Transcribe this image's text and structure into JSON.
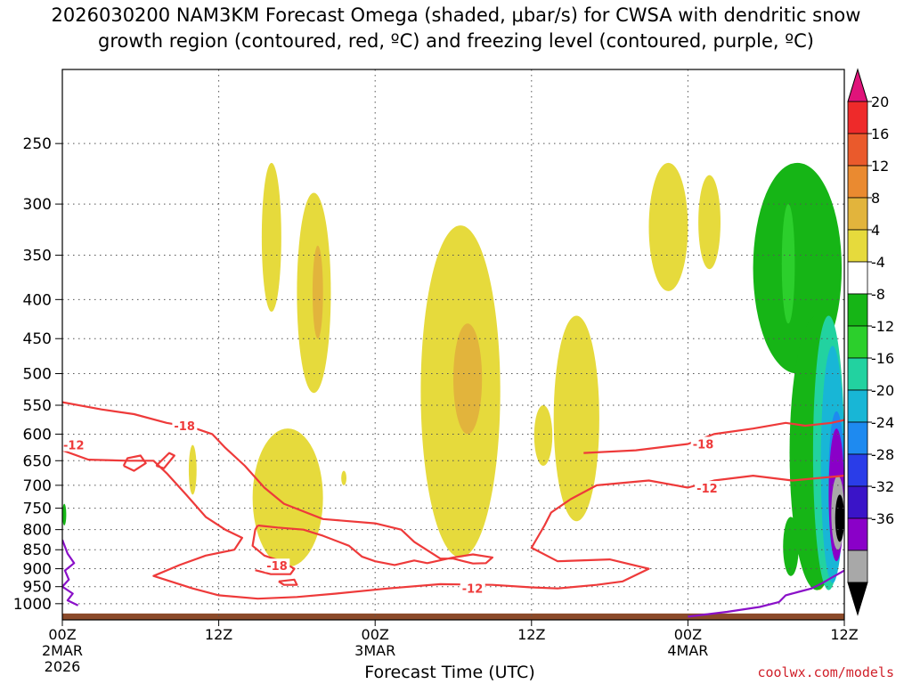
{
  "title_line1": "2026030200 NAM3KM Forecast Omega (shaded, μbar/s) for CWSA with dendritic snow",
  "title_line2": "growth region (contoured, red, ºC) and freezing level (contoured, purple, ºC)",
  "credit": "coolwx.com/models",
  "chart_data": {
    "type": "time-height cross section (filled contours + line contours)",
    "title": "2026030200 NAM3KM Forecast Omega (shaded, μbar/s) for CWSA with dendritic snow growth region (contoured, red, ºC) and freezing level (contoured, purple, ºC)",
    "xlabel": "Forecast Time (UTC)",
    "ylabel": "",
    "x_range_hours": [
      0,
      60
    ],
    "y_scale": "log (pressure)",
    "ylim_hPa": [
      1050,
      200
    ],
    "grid": true,
    "y_ticks": [
      250,
      300,
      350,
      400,
      450,
      500,
      550,
      600,
      650,
      700,
      750,
      800,
      850,
      900,
      950,
      1000
    ],
    "x_ticks": [
      {
        "hour": 0,
        "lines": [
          "00Z",
          "2MAR",
          "2026"
        ]
      },
      {
        "hour": 12,
        "lines": [
          "12Z"
        ]
      },
      {
        "hour": 24,
        "lines": [
          "00Z",
          "3MAR"
        ]
      },
      {
        "hour": 36,
        "lines": [
          "12Z"
        ]
      },
      {
        "hour": 48,
        "lines": [
          "00Z",
          "4MAR"
        ]
      },
      {
        "hour": 60,
        "lines": [
          "12Z"
        ]
      }
    ],
    "colorbar": {
      "labels": [
        "20",
        "16",
        "12",
        "8",
        "4",
        "-4",
        "-8",
        "-12",
        "-16",
        "-20",
        "-24",
        "-28",
        "-32",
        "-36"
      ],
      "colors": [
        "#e0137a",
        "#ee2a2a",
        "#ea5a2c",
        "#ea8a30",
        "#e2b43c",
        "#e6da3c",
        "#ffffff",
        "#16b516",
        "#2ccf2c",
        "#22d2a0",
        "#18b6d6",
        "#1e8af0",
        "#2a3de8",
        "#3a14c8",
        "#8a00c8",
        "#a8a8a8",
        "#000000"
      ]
    },
    "omega_regions": [
      {
        "level": "4",
        "hours": [
          15.3,
          16.8
        ],
        "p_hPa": [
          265,
          415
        ]
      },
      {
        "level": "4",
        "hours": [
          18.0,
          20.6
        ],
        "p_hPa": [
          290,
          530
        ]
      },
      {
        "level": "8",
        "hours": [
          19.2,
          20.0
        ],
        "p_hPa": [
          340,
          450
        ]
      },
      {
        "level": "4",
        "hours": [
          14.6,
          20.0
        ],
        "p_hPa": [
          590,
          895
        ]
      },
      {
        "level": "4",
        "hours": [
          9.7,
          10.3
        ],
        "p_hPa": [
          620,
          720
        ]
      },
      {
        "level": "4",
        "hours": [
          21.4,
          21.8
        ],
        "p_hPa": [
          670,
          700
        ]
      },
      {
        "level": "4",
        "hours": [
          27.5,
          33.6
        ],
        "p_hPa": [
          320,
          870
        ]
      },
      {
        "level": "8",
        "hours": [
          30.0,
          32.2
        ],
        "p_hPa": [
          430,
          600
        ]
      },
      {
        "level": "4",
        "hours": [
          36.2,
          37.6
        ],
        "p_hPa": [
          550,
          660
        ]
      },
      {
        "level": "4",
        "hours": [
          37.7,
          41.2
        ],
        "p_hPa": [
          420,
          780
        ]
      },
      {
        "level": "4",
        "hours": [
          45.0,
          48.0
        ],
        "p_hPa": [
          265,
          390
        ]
      },
      {
        "level": "4",
        "hours": [
          48.8,
          50.5
        ],
        "p_hPa": [
          275,
          365
        ]
      },
      {
        "level": "4",
        "hours": [
          57.6,
          58.6
        ],
        "p_hPa": [
          850,
          960
        ]
      },
      {
        "level": "-4",
        "hours": [
          53.0,
          59.8
        ],
        "p_hPa": [
          265,
          500
        ]
      },
      {
        "level": "-4",
        "hours": [
          55.8,
          60.0
        ],
        "p_hPa": [
          420,
          960
        ]
      },
      {
        "level": "-4",
        "hours": [
          55.3,
          56.5
        ],
        "p_hPa": [
          770,
          920
        ]
      },
      {
        "level": "-8",
        "hours": [
          55.2,
          56.2
        ],
        "p_hPa": [
          300,
          430
        ]
      },
      {
        "level": "-12",
        "hours": [
          57.6,
          60.0
        ],
        "p_hPa": [
          420,
          960
        ]
      },
      {
        "level": "-16",
        "hours": [
          58.2,
          60.0
        ],
        "p_hPa": [
          460,
          940
        ]
      },
      {
        "level": "-20",
        "hours": [
          58.8,
          60.0
        ],
        "p_hPa": [
          560,
          820
        ]
      },
      {
        "level": "-28",
        "hours": [
          58.8,
          60.0
        ],
        "p_hPa": [
          590,
          880
        ]
      },
      {
        "level": "-32",
        "hours": [
          59.0,
          60.0
        ],
        "p_hPa": [
          680,
          850
        ]
      },
      {
        "level": "-36",
        "hours": [
          59.3,
          60.0
        ],
        "p_hPa": [
          720,
          830
        ]
      },
      {
        "level": "-4",
        "hours": [
          0.0,
          0.3
        ],
        "p_hPa": [
          740,
          790
        ]
      }
    ],
    "dgz_contours": [
      {
        "label": "-18",
        "label_at": {
          "hour": 8.5,
          "p_hPa": 585
        },
        "points": [
          [
            0,
            545
          ],
          [
            3,
            557
          ],
          [
            5.5,
            565
          ],
          [
            8,
            580
          ],
          [
            10,
            588
          ],
          [
            11.5,
            600
          ],
          [
            12.5,
            625
          ],
          [
            14,
            660
          ],
          [
            15.5,
            705
          ],
          [
            17,
            740
          ],
          [
            20,
            775
          ],
          [
            24,
            785
          ],
          [
            26,
            800
          ],
          [
            27,
            830
          ],
          [
            29,
            873
          ],
          [
            30,
            873
          ],
          [
            30.8,
            880
          ],
          [
            31.5,
            886
          ],
          [
            32.5,
            885
          ],
          [
            33,
            870
          ],
          [
            31.5,
            862
          ],
          [
            30,
            870
          ],
          [
            28,
            885
          ],
          [
            27,
            878
          ],
          [
            25.5,
            890
          ],
          [
            24,
            880
          ],
          [
            23,
            868
          ],
          [
            22,
            840
          ],
          [
            20,
            815
          ],
          [
            18.5,
            800
          ],
          [
            16.5,
            795
          ],
          [
            15,
            790
          ]
        ]
      },
      {
        "label": "-18",
        "label_at": {
          "hour": 15.6,
          "p_hPa": 892
        },
        "points": [
          [
            15,
            790
          ],
          [
            14.8,
            800
          ],
          [
            14.6,
            840
          ],
          [
            15.5,
            865
          ],
          [
            16.8,
            880
          ],
          [
            17.8,
            900
          ],
          [
            17.5,
            915
          ],
          [
            16,
            915
          ],
          [
            14.8,
            904
          ]
        ]
      },
      {
        "label": "-18",
        "label_at": {
          "hour": 48.3,
          "p_hPa": 618
        },
        "points": [
          [
            40,
            635
          ],
          [
            44,
            630
          ],
          [
            48,
            618
          ],
          [
            50,
            600
          ],
          [
            53,
            590
          ],
          [
            55.5,
            580
          ],
          [
            57,
            585
          ],
          [
            59,
            580
          ],
          [
            60,
            575
          ]
        ]
      },
      {
        "label": "-12",
        "label_at": {
          "hour": 0,
          "p_hPa": 620
        },
        "points": [
          [
            0,
            630
          ],
          [
            2,
            648
          ],
          [
            5,
            650
          ],
          [
            7,
            650
          ],
          [
            8,
            675
          ],
          [
            9.5,
            720
          ],
          [
            11,
            770
          ],
          [
            12.5,
            800
          ],
          [
            13.8,
            820
          ],
          [
            13.2,
            850
          ],
          [
            11,
            865
          ],
          [
            9,
            890
          ],
          [
            7,
            920
          ],
          [
            10,
            955
          ],
          [
            12,
            975
          ],
          [
            15,
            985
          ],
          [
            18,
            980
          ],
          [
            21,
            970
          ],
          [
            25,
            955
          ],
          [
            29,
            943
          ],
          [
            33,
            945
          ],
          [
            36,
            952
          ],
          [
            38,
            955
          ],
          [
            41,
            945
          ],
          [
            43,
            935
          ],
          [
            45,
            900
          ],
          [
            42,
            875
          ],
          [
            38,
            880
          ],
          [
            36,
            845
          ],
          [
            37,
            790
          ],
          [
            37.5,
            760
          ],
          [
            39,
            730
          ],
          [
            41,
            700
          ],
          [
            45,
            690
          ],
          [
            48,
            705
          ],
          [
            50,
            690
          ],
          [
            53,
            680
          ],
          [
            56,
            690
          ],
          [
            60,
            680
          ]
        ]
      },
      {
        "label": "-12",
        "label_at": {
          "hour": 48.6,
          "p_hPa": 706
        },
        "points": []
      },
      {
        "label": "-12",
        "label_at": {
          "hour": 30.6,
          "p_hPa": 955
        },
        "points": []
      },
      {
        "label": "",
        "label_at": null,
        "points": [
          [
            4.7,
            660
          ],
          [
            5,
            645
          ],
          [
            6,
            640
          ],
          [
            6.4,
            655
          ],
          [
            5.5,
            670
          ],
          [
            4.7,
            660
          ]
        ]
      },
      {
        "label": "",
        "label_at": null,
        "points": [
          [
            7.2,
            660
          ],
          [
            8.2,
            635
          ],
          [
            8.6,
            640
          ],
          [
            7.8,
            665
          ],
          [
            7.2,
            660
          ]
        ]
      },
      {
        "label": "",
        "label_at": null,
        "points": [
          [
            16.6,
            935
          ],
          [
            17.8,
            930
          ],
          [
            18,
            945
          ],
          [
            17,
            945
          ],
          [
            16.6,
            935
          ]
        ]
      }
    ],
    "freezing_level": [
      {
        "points": [
          [
            0,
            825
          ],
          [
            0.4,
            860
          ],
          [
            0.9,
            885
          ],
          [
            0.2,
            905
          ],
          [
            0.5,
            930
          ],
          [
            0,
            950
          ],
          [
            0.8,
            970
          ],
          [
            0.4,
            990
          ],
          [
            1.2,
            1005
          ]
        ]
      },
      {
        "points": [
          [
            48,
            1040
          ],
          [
            51,
            1025
          ],
          [
            53.5,
            1010
          ],
          [
            55,
            995
          ],
          [
            55.5,
            975
          ],
          [
            56.5,
            965
          ],
          [
            57.5,
            955
          ],
          [
            58.3,
            940
          ],
          [
            59,
            925
          ],
          [
            60,
            905
          ]
        ]
      }
    ],
    "terrain_hPa": 1030
  }
}
